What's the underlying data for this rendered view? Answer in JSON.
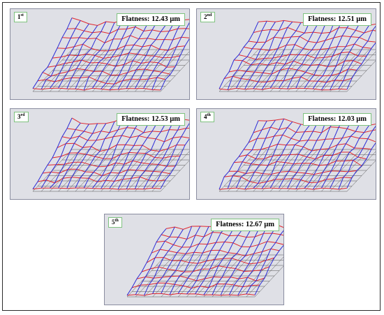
{
  "panels": [
    {
      "ordinal": "1",
      "suffix": "st",
      "flatness_label": "Flatness: 12.43 µm",
      "flatness_um": 12.43
    },
    {
      "ordinal": "2",
      "suffix": "nd",
      "flatness_label": "Flatness: 12.51 µm",
      "flatness_um": 12.51
    },
    {
      "ordinal": "3",
      "suffix": "rd",
      "flatness_label": "Flatness: 12.53 µm",
      "flatness_um": 12.53
    },
    {
      "ordinal": "4",
      "suffix": "th",
      "flatness_label": "Flatness: 12.03 µm",
      "flatness_um": 12.03
    },
    {
      "ordinal": "5",
      "suffix": "th",
      "flatness_label": "Flatness: 12.67 µm",
      "flatness_um": 12.67
    }
  ],
  "colors": {
    "panel_bg": "#dfe0e6",
    "column_lines": "#2b2bd6",
    "row_lines": "#e0262e",
    "base_grid": "#555555",
    "label_border": "#7fc27f"
  }
}
